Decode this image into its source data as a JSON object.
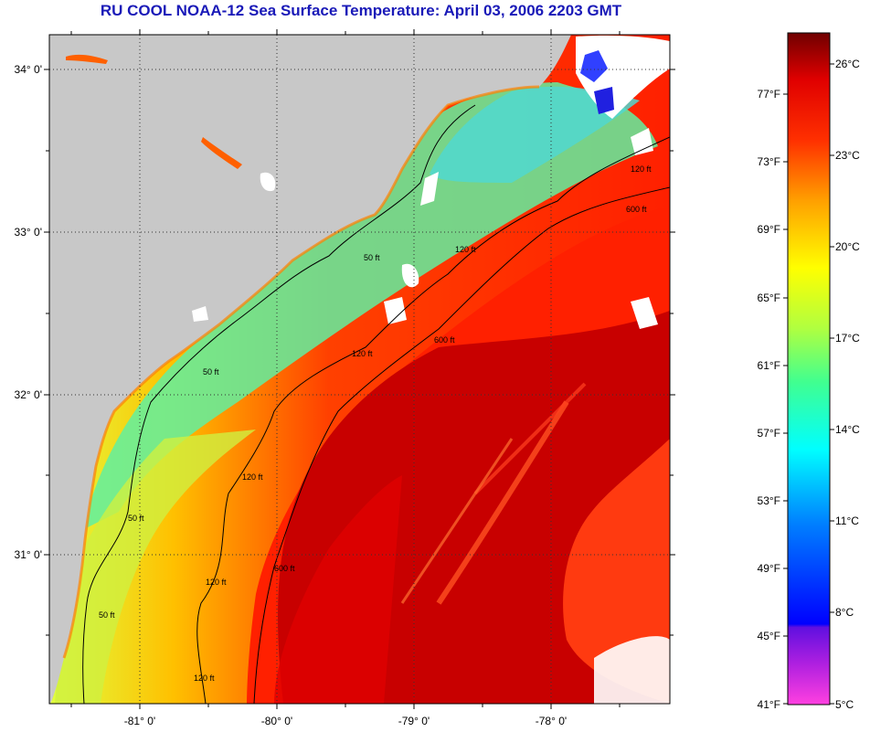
{
  "title": "RU COOL  NOAA-12  Sea Surface Temperature:  April 03, 2006 2203 GMT",
  "map": {
    "lat_labels": [
      "34° 0'",
      "33° 0'",
      "32° 0'",
      "31° 0'"
    ],
    "lon_labels": [
      "-81° 0'",
      "-80° 0'",
      "-79° 0'",
      "-78° 0'"
    ],
    "contour_labels": [
      "50 ft",
      "50 ft",
      "50 ft",
      "50 ft",
      "120 ft",
      "120 ft",
      "120 ft",
      "120 ft",
      "120 ft",
      "120 ft",
      "600 ft",
      "600 ft",
      "600 ft"
    ],
    "colors": {
      "land": "#c8c8c8",
      "cloud": "#ffffff",
      "contour": "#000000"
    }
  },
  "colorbar": {
    "fahrenheit_labels": [
      "77°F",
      "73°F",
      "69°F",
      "65°F",
      "61°F",
      "57°F",
      "53°F",
      "49°F",
      "45°F",
      "41°F"
    ],
    "celsius_labels": [
      "26°C",
      "23°C",
      "20°C",
      "17°C",
      "14°C",
      "11°C",
      "8°C",
      "5°C"
    ],
    "colors": [
      "#ff40e0",
      "#8020e0",
      "#0000ff",
      "#0080ff",
      "#00ffff",
      "#40ff90",
      "#b0ff40",
      "#ffff00",
      "#ffa000",
      "#ff3000",
      "#e00000",
      "#700000"
    ]
  }
}
